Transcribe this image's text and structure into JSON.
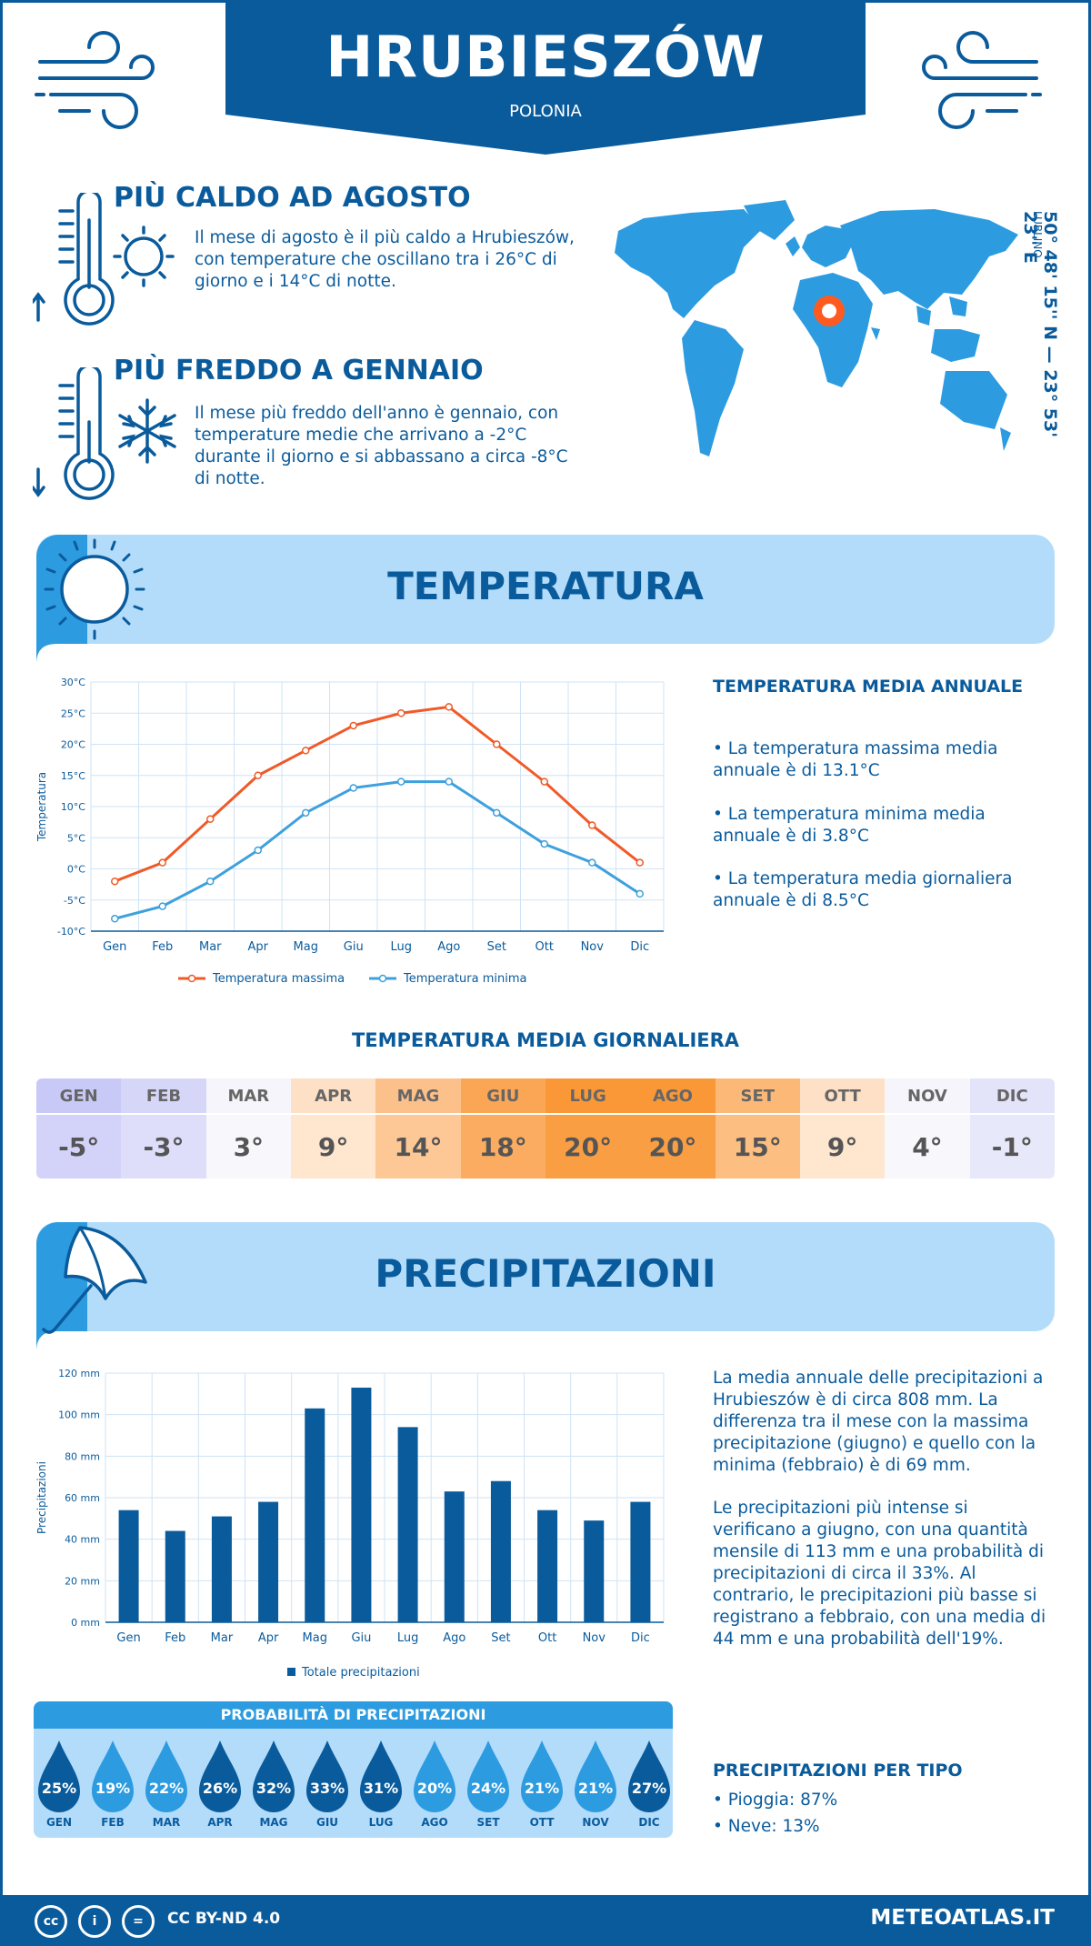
{
  "header": {
    "city": "HRUBIESZÓW",
    "country": "POLONIA"
  },
  "facts": {
    "warm": {
      "title": "PIÙ CALDO AD AGOSTO",
      "text": "Il mese di agosto è il più caldo a Hrubieszów, con temperature che oscillano tra i 26°C di giorno e i 14°C di notte."
    },
    "cold": {
      "title": "PIÙ FREDDO A GENNAIO",
      "text": "Il mese più freddo dell'anno è gennaio, con temperature medie che arrivano a -2°C durante il giorno e si abbassano a circa -8°C di notte."
    }
  },
  "location": {
    "coords": "50° 48' 15'' N — 23° 53' 23'' E",
    "region": "LUBLINO"
  },
  "temperature_section": {
    "title": "TEMPERATURA",
    "annual_title": "TEMPERATURA MEDIA ANNUALE",
    "bullets": [
      "• La temperatura massima media annuale è di 13.1°C",
      "• La temperatura minima media annuale è di 3.8°C",
      "• La temperatura media giornaliera annuale è di 8.5°C"
    ]
  },
  "daily": {
    "title": "TEMPERATURA MEDIA GIORNALIERA",
    "months": [
      "GEN",
      "FEB",
      "MAR",
      "APR",
      "MAG",
      "GIU",
      "LUG",
      "AGO",
      "SET",
      "OTT",
      "NOV",
      "DIC"
    ],
    "values": [
      "-5°",
      "-3°",
      "3°",
      "9°",
      "14°",
      "18°",
      "20°",
      "20°",
      "15°",
      "9°",
      "4°",
      "-1°"
    ],
    "head_colors": [
      "#c9c9f7",
      "#d6d6f8",
      "#f5f5fb",
      "#fde0c6",
      "#fcc08a",
      "#fba655",
      "#fa9838",
      "#fa9838",
      "#fcb877",
      "#fde0c6",
      "#f5f5fb",
      "#e3e3fa"
    ],
    "cell_colors": [
      "#d3d3fa",
      "#dedefa",
      "#f7f7fc",
      "#fee6cf",
      "#fdc895",
      "#fbac60",
      "#fa9e43",
      "#fa9e43",
      "#fcbe81",
      "#fee6cf",
      "#f7f7fc",
      "#e8e8fb"
    ]
  },
  "precip_section": {
    "title": "PRECIPITAZIONI",
    "text1": "La media annuale delle precipitazioni a Hrubieszów è di circa 808 mm. La differenza tra il mese con la massima precipitazione (giugno) e quello con la minima (febbraio) è di 69 mm.",
    "text2": "Le precipitazioni più intense si verificano a giugno, con una quantità mensile di 113 mm e una probabilità di precipitazioni di circa il 33%. Al contrario, le precipitazioni più basse si registrano a febbraio, con una media di 44 mm e una probabilità dell'19%.",
    "prob_title": "PROBABILITÀ DI PRECIPITAZIONI",
    "prob_values": [
      "25%",
      "19%",
      "22%",
      "26%",
      "32%",
      "33%",
      "31%",
      "20%",
      "24%",
      "21%",
      "21%",
      "27%"
    ],
    "prob_colors": [
      "#0a5b9c",
      "#2d9be0",
      "#2d9be0",
      "#0a5b9c",
      "#0a5b9c",
      "#0a5b9c",
      "#0a5b9c",
      "#2d9be0",
      "#2d9be0",
      "#2d9be0",
      "#2d9be0",
      "#0a5b9c"
    ],
    "type_title": "PRECIPITAZIONI PER TIPO",
    "types": [
      "• Pioggia: 87%",
      "• Neve: 13%"
    ]
  },
  "footer": {
    "license": "CC BY-ND 4.0",
    "site": "METEOATLAS.IT",
    "icons": [
      "cc-icon",
      "person-icon",
      "equals-icon"
    ],
    "icon_labels": [
      "cc",
      "i",
      "="
    ]
  },
  "chart_data": [
    {
      "type": "line",
      "categories": [
        "Gen",
        "Feb",
        "Mar",
        "Apr",
        "Mag",
        "Giu",
        "Lug",
        "Ago",
        "Set",
        "Ott",
        "Nov",
        "Dic"
      ],
      "series": [
        {
          "name": "Temperatura massima",
          "color": "#f05a28",
          "values": [
            -2,
            1,
            8,
            15,
            19,
            23,
            25,
            26,
            20,
            14,
            7,
            1
          ]
        },
        {
          "name": "Temperatura minima",
          "color": "#3ea0dd",
          "values": [
            -8,
            -6,
            -2,
            3,
            9,
            13,
            14,
            14,
            9,
            4,
            1,
            -4
          ]
        }
      ],
      "ylabel": "Temperatura",
      "ylim": [
        -10,
        30
      ],
      "yticks": [
        "-10°C",
        "-5°C",
        "0°C",
        "5°C",
        "10°C",
        "15°C",
        "20°C",
        "25°C",
        "30°C"
      ],
      "grid": true,
      "legend": "bottom"
    },
    {
      "type": "bar",
      "categories": [
        "Gen",
        "Feb",
        "Mar",
        "Apr",
        "Mag",
        "Giu",
        "Lug",
        "Ago",
        "Set",
        "Ott",
        "Nov",
        "Dic"
      ],
      "series": [
        {
          "name": "Totale precipitazioni",
          "color": "#0a5b9c",
          "values": [
            54,
            44,
            51,
            58,
            103,
            113,
            94,
            63,
            68,
            54,
            49,
            58
          ]
        }
      ],
      "ylabel": "Precipitazioni",
      "ylim": [
        0,
        120
      ],
      "yticks": [
        "0 mm",
        "20 mm",
        "40 mm",
        "60 mm",
        "80 mm",
        "100 mm",
        "120 mm"
      ],
      "grid": true,
      "legend": "bottom"
    }
  ]
}
